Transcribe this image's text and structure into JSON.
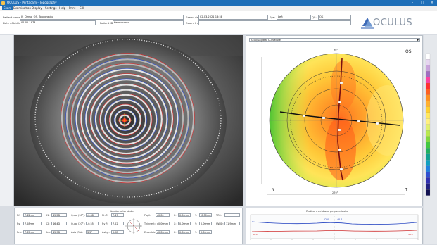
{
  "window": {
    "title": "OCULUS - Pentacam - Topography"
  },
  "menu": [
    {
      "label": "Exam",
      "selected": true
    },
    {
      "label": "Examination",
      "selected": false
    },
    {
      "label": "Display",
      "selected": false
    },
    {
      "label": "Settings",
      "selected": false
    },
    {
      "label": "Help",
      "selected": false
    },
    {
      "label": "Print",
      "selected": false
    },
    {
      "label": "EXI",
      "selected": false
    }
  ],
  "patient": {
    "name_label": "Patient name:",
    "name_value": "JS_Demo_OS, Topography",
    "dob_label": "Date of birth:",
    "dob_value": "01.01.1974",
    "id_label": "Patient ID:",
    "id_value": "Keratoconus",
    "exam_date_label": "Exam. date:",
    "exam_date_value": "02.03.2021 13:58",
    "eye_label": "Eye:",
    "eye_value": "Left",
    "exam_info_label": "Exam. Info:",
    "exam_info_value": "",
    "qs_label": "QS:",
    "qs_value": "OK"
  },
  "logo": {
    "text": "OCULUS",
    "mark_color": "#2a5bb0"
  },
  "map": {
    "dropdown_label": "Axial/Sagittal Curvature",
    "eye_badge": "OS",
    "nasal_label": "N",
    "temporal_label": "T",
    "top_tick": "90°",
    "bottom_tick": "270°",
    "pattern": "bowtie-steep-inferior"
  },
  "scale": {
    "colors": [
      "#ffffff",
      "#e6d6f0",
      "#c9a4dc",
      "#a06cc0",
      "#ff40a0",
      "#ff3030",
      "#ff6020",
      "#ff9020",
      "#ffb030",
      "#ffd030",
      "#ffe860",
      "#fff080",
      "#e0f070",
      "#b8e850",
      "#80d840",
      "#40c840",
      "#20b060",
      "#10a090",
      "#10a0c0",
      "#2080e0",
      "#3050d0",
      "#3030b0",
      "#202080",
      "#101050"
    ]
  },
  "bottom_left": {
    "title": "Keratometer data",
    "rows": [
      {
        "l1": "Rf:",
        "v1": "7.42mm",
        "l2": "K1:",
        "v2": "45.5D",
        "l3": "Q-val (30°):",
        "v3": "-0.68",
        "l4": "Rh F:",
        "v4": "7.47"
      },
      {
        "l1": "Rs:",
        "v1": "7.28mm",
        "l2": "K2:",
        "v2": "46.4D",
        "l3": "Q-val (20°):",
        "v3": "-0.55",
        "l4": "Rv F:",
        "v4": "7.22"
      },
      {
        "l1": "Rm:",
        "v1": "7.35mm",
        "l2": "Km:",
        "v2": "45.9D",
        "l3": "Axis (flat):",
        "v3": "3.5°",
        "l4": "Astig.:",
        "v4": "0.9D"
      }
    ],
    "right_block": [
      {
        "l1": "Pupil:",
        "v1": "x0.00",
        "l2": "X:",
        "v2": "0.00mm",
        "l3": "Y:",
        "v3": "-0.00mm"
      },
      {
        "l1": "Thinnest:",
        "v1": "x0.00mm",
        "l2": "X:",
        "v2": "0.00mm",
        "l3": "Y:",
        "v3": "0.00mm"
      },
      {
        "l1": "Eccentricity:",
        "v1": "x0.00mm",
        "l2": "X:",
        "v2": "0.00mm",
        "l3": "Y:",
        "v3": "0.00mm"
      }
    ],
    "side": {
      "l1": "TRS:",
      "v1": "",
      "l2": "HWID:",
      "v2": "11.9mm"
    }
  },
  "bottom_right": {
    "title": "Radius meridians perpendicular",
    "left_value": "52.0",
    "right_value": "48.4",
    "min_label_left": "48.0",
    "min_label_right": "44.0"
  }
}
